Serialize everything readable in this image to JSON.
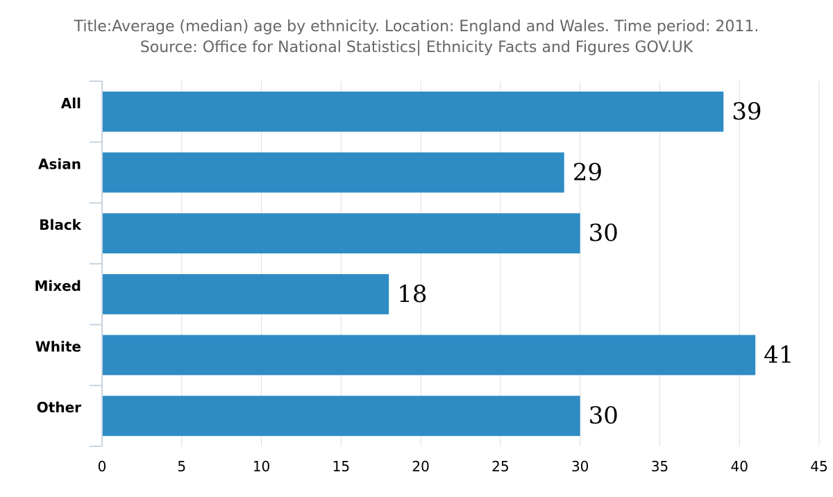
{
  "header": {
    "title_line1": "Title:Average (median) age by ethnicity. Location: England and Wales. Time period: 2011.",
    "title_line2": "Source: Office for National Statistics| Ethnicity Facts and Figures GOV.UK"
  },
  "colors": {
    "bar": "#2e8bc4",
    "grid": "#dddddd",
    "axis": "#c8d4e0",
    "title": "#666666"
  },
  "chart_data": {
    "type": "bar",
    "orientation": "horizontal",
    "title": "Title:Average (median) age by ethnicity. Location: England and Wales. Time period: 2011.",
    "subtitle": "Source: Office for National Statistics| Ethnicity Facts and Figures GOV.UK",
    "categories": [
      "All",
      "Asian",
      "Black",
      "Mixed",
      "White",
      "Other"
    ],
    "values": [
      39,
      29,
      30,
      18,
      41,
      30
    ],
    "data_labels": [
      "39",
      "29",
      "30",
      "18",
      "41",
      "30"
    ],
    "xlim": [
      0,
      45
    ],
    "xticks": [
      0,
      5,
      10,
      15,
      20,
      25,
      30,
      35,
      40,
      45
    ],
    "xlabel": "",
    "ylabel": "",
    "grid": true,
    "legend": "none"
  }
}
